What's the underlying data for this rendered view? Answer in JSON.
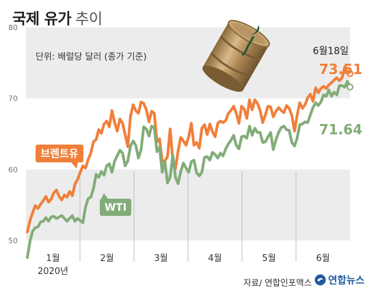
{
  "header": {
    "title_bold": "국제 유가",
    "title_light": "추이"
  },
  "unit_note": "단위: 배럴당 달러 (종가 기준)",
  "source": "자료/ 연합인포맥스",
  "logo_text": "연합뉴스",
  "colors": {
    "brent": "#f07f3a",
    "wti": "#82ac78",
    "band": "#ececec",
    "grid": "#bdbdbd"
  },
  "chart_data": {
    "type": "line",
    "ylim": [
      47,
      80
    ],
    "yticks": [
      50,
      60,
      70,
      80
    ],
    "x_tick_labels": [
      "1월",
      "2월",
      "3월",
      "4월",
      "5월",
      "6월"
    ],
    "year_label": "2020년",
    "end_date_label": "6월18일",
    "series": [
      {
        "name": "브렌트유",
        "end_value_label": "73.51",
        "values": [
          51.2,
          52.8,
          53.9,
          54.9,
          54.5,
          55.1,
          55.6,
          56.2,
          55.4,
          55.8,
          56.7,
          57.1,
          56.2,
          55.7,
          56.4,
          56.1,
          56.9,
          56.3,
          57.9,
          58.6,
          59.6,
          60.5,
          60.2,
          61.4,
          62.3,
          63.9,
          64.2,
          65.6,
          65.1,
          66.4,
          66.8,
          66.0,
          68.3,
          66.6,
          65.4,
          67.1,
          66.5,
          64.9,
          63.2,
          67.5,
          69.1,
          68.3,
          67.9,
          69.5,
          69.3,
          68.4,
          66.7,
          68.2,
          67.9,
          63.9,
          64.3,
          61.1,
          61.2,
          61.8,
          65.7,
          61.2,
          60.1,
          62.6,
          64.5,
          64.0,
          63.4,
          64.6,
          66.5,
          63.4,
          63.8,
          63.0,
          65.8,
          66.3,
          64.9,
          66.4,
          65.3,
          64.6,
          66.5,
          66.8,
          66.6,
          66.9,
          67.9,
          68.3,
          68.9,
          67.9,
          66.5,
          68.9,
          68.5,
          67.2,
          69.8,
          68.4,
          69.8,
          69.3,
          68.3,
          66.6,
          67.7,
          68.9,
          68.8,
          67.4,
          68.2,
          68.7,
          68.3,
          68.0,
          69.0,
          68.6,
          67.6,
          65.4,
          67.6,
          69.4,
          68.6,
          69.1,
          70.1,
          70.6,
          69.6,
          71.5,
          70.8,
          71.4,
          71.7,
          71.4,
          71.9,
          72.2,
          72.6,
          72.9,
          72.5,
          72.9,
          74.4,
          73.6,
          73.5
        ],
        "label_on_chart": "브렌트유"
      },
      {
        "name": "WTI",
        "end_value_label": "71.64",
        "values": [
          47.6,
          49.9,
          51.3,
          51.8,
          51.9,
          52.6,
          52.7,
          53.2,
          52.7,
          53.3,
          53.4,
          53.1,
          53.3,
          53.5,
          53.1,
          52.7,
          53.1,
          53.5,
          52.7,
          53.1,
          52.8,
          52.5,
          54.7,
          55.9,
          56.1,
          57.3,
          59.3,
          58.9,
          59.7,
          59.2,
          60.5,
          60.8,
          59.6,
          61.2,
          61.9,
          62.7,
          62.3,
          60.5,
          61.2,
          63.3,
          64.0,
          63.4,
          61.6,
          62.8,
          66.0,
          65.7,
          64.7,
          66.1,
          65.9,
          62.5,
          63.1,
          59.6,
          61.1,
          58.1,
          58.9,
          62.0,
          58.9,
          58.0,
          59.7,
          60.9,
          60.2,
          59.6,
          61.1,
          61.3,
          59.5,
          59.1,
          59.6,
          61.7,
          61.8,
          61.3,
          62.4,
          62.1,
          61.6,
          62.3,
          61.9,
          62.9,
          63.6,
          64.1,
          64.8,
          63.4,
          62.9,
          64.6,
          64.7,
          64.4,
          66.1,
          64.8,
          65.8,
          65.2,
          65.2,
          63.8,
          63.9,
          64.6,
          65.2,
          62.8,
          64.2,
          65.2,
          65.9,
          66.1,
          65.6,
          65.5,
          63.8,
          63.3,
          64.4,
          66.3,
          66.4,
          66.7,
          66.6,
          67.7,
          68.7,
          69.4,
          69.0,
          69.5,
          70.5,
          70.3,
          71.2,
          70.3,
          70.9,
          70.5,
          71.8,
          71.8,
          71.6,
          72.4,
          71.6
        ],
        "label_on_chart": "WTI"
      }
    ]
  }
}
